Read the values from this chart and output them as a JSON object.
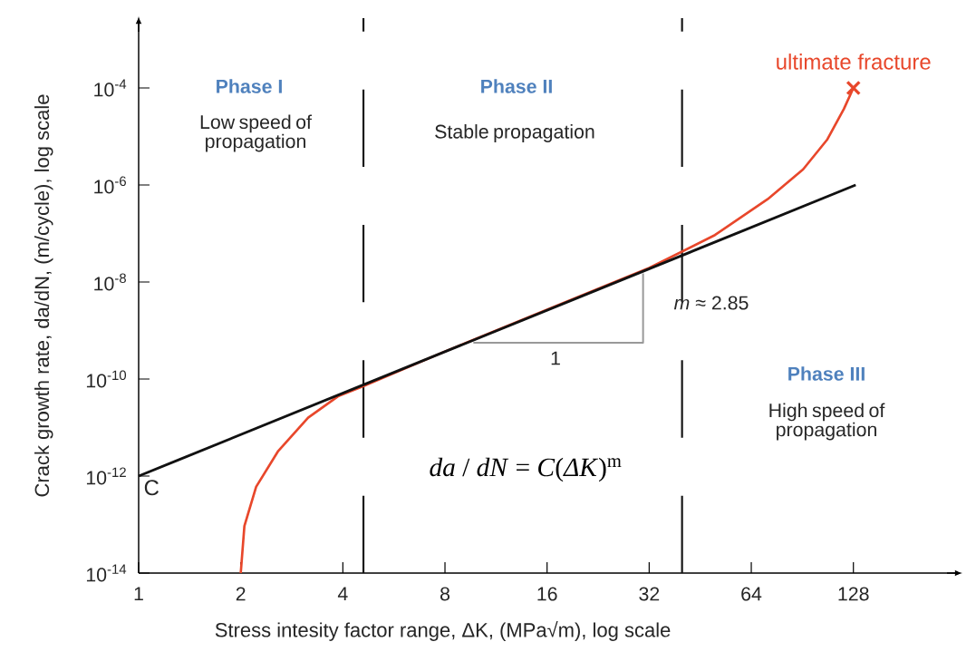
{
  "chart_data": {
    "type": "line",
    "xlabel": "Stress intesity factor range, ΔK, (MPa√m), log scale",
    "ylabel": "Crack growth rate, da/dN, (m/cycle), log scale",
    "log": "xy",
    "grid": false,
    "xlim": [
      1,
      265
    ],
    "ylim": [
      1e-14,
      0.00275
    ],
    "xticks": [
      1,
      2,
      4,
      8,
      16,
      32,
      64,
      128
    ],
    "yticks": [
      {
        "value": 1e-14,
        "label": "10$^{-14}$"
      },
      {
        "value": 1e-12,
        "label": "10$^{-12}$"
      },
      {
        "value": 1e-10,
        "label": "10$^{-10}$"
      },
      {
        "value": 1e-08,
        "label": "10$^{-8}$"
      },
      {
        "value": 1e-06,
        "label": "10$^{-6}$"
      },
      {
        "value": 0.0001,
        "label": "10$^{-4}$"
      }
    ],
    "series": [
      {
        "color": "#e8472b",
        "marker": "none",
        "x": [
          2,
          2.05,
          2.22,
          2.58,
          3.16,
          3.87,
          4.57,
          8,
          16,
          32,
          50,
          71.5,
          91,
          107,
          120,
          128
        ],
        "values": [
          1e-14,
          9.3e-14,
          6e-13,
          3.3e-12,
          1.6e-11,
          4.4e-11,
          7e-11,
          3.7e-10,
          2.7e-09,
          1.95e-08,
          9.3e-08,
          5.1e-07,
          2.1e-06,
          8.5e-06,
          3.7e-05,
          0.0001
        ]
      },
      {
        "color": "#111111",
        "marker": "none",
        "x": [
          1,
          130
        ],
        "values": [
          1e-12,
          1e-06
        ]
      },
      {
        "color": "#999999",
        "marker": "none",
        "x": [
          9.7,
          30.7,
          30.7
        ],
        "values": [
          5.6e-10,
          5.6e-10,
          1.5e-08
        ]
      },
      {
        "type": "scatter",
        "color": "#e8472b",
        "marker": "cross",
        "x": [
          128
        ],
        "values": [
          0.0001
        ]
      }
    ],
    "ref_lines": [
      {
        "axis": "x",
        "value": 4.6,
        "color": "#111111",
        "line_style": "dashed"
      },
      {
        "axis": "x",
        "value": 40,
        "color": "#111111",
        "line_style": "dashed"
      }
    ],
    "annotations": [
      "Phase I",
      "Low speed of propagation",
      "Phase II",
      "Stable propagation",
      "Phase III",
      "High speed of propagation",
      "*da* / *dN* = *C*(*ΔK*)$^{m}$",
      "1",
      "*m* ≈ 2.85",
      {
        "text": "C",
        "x": 1,
        "y": 1e-12
      },
      {
        "text": "ultimate fracture",
        "x": 128,
        "y": 0.0001
      }
    ]
  }
}
